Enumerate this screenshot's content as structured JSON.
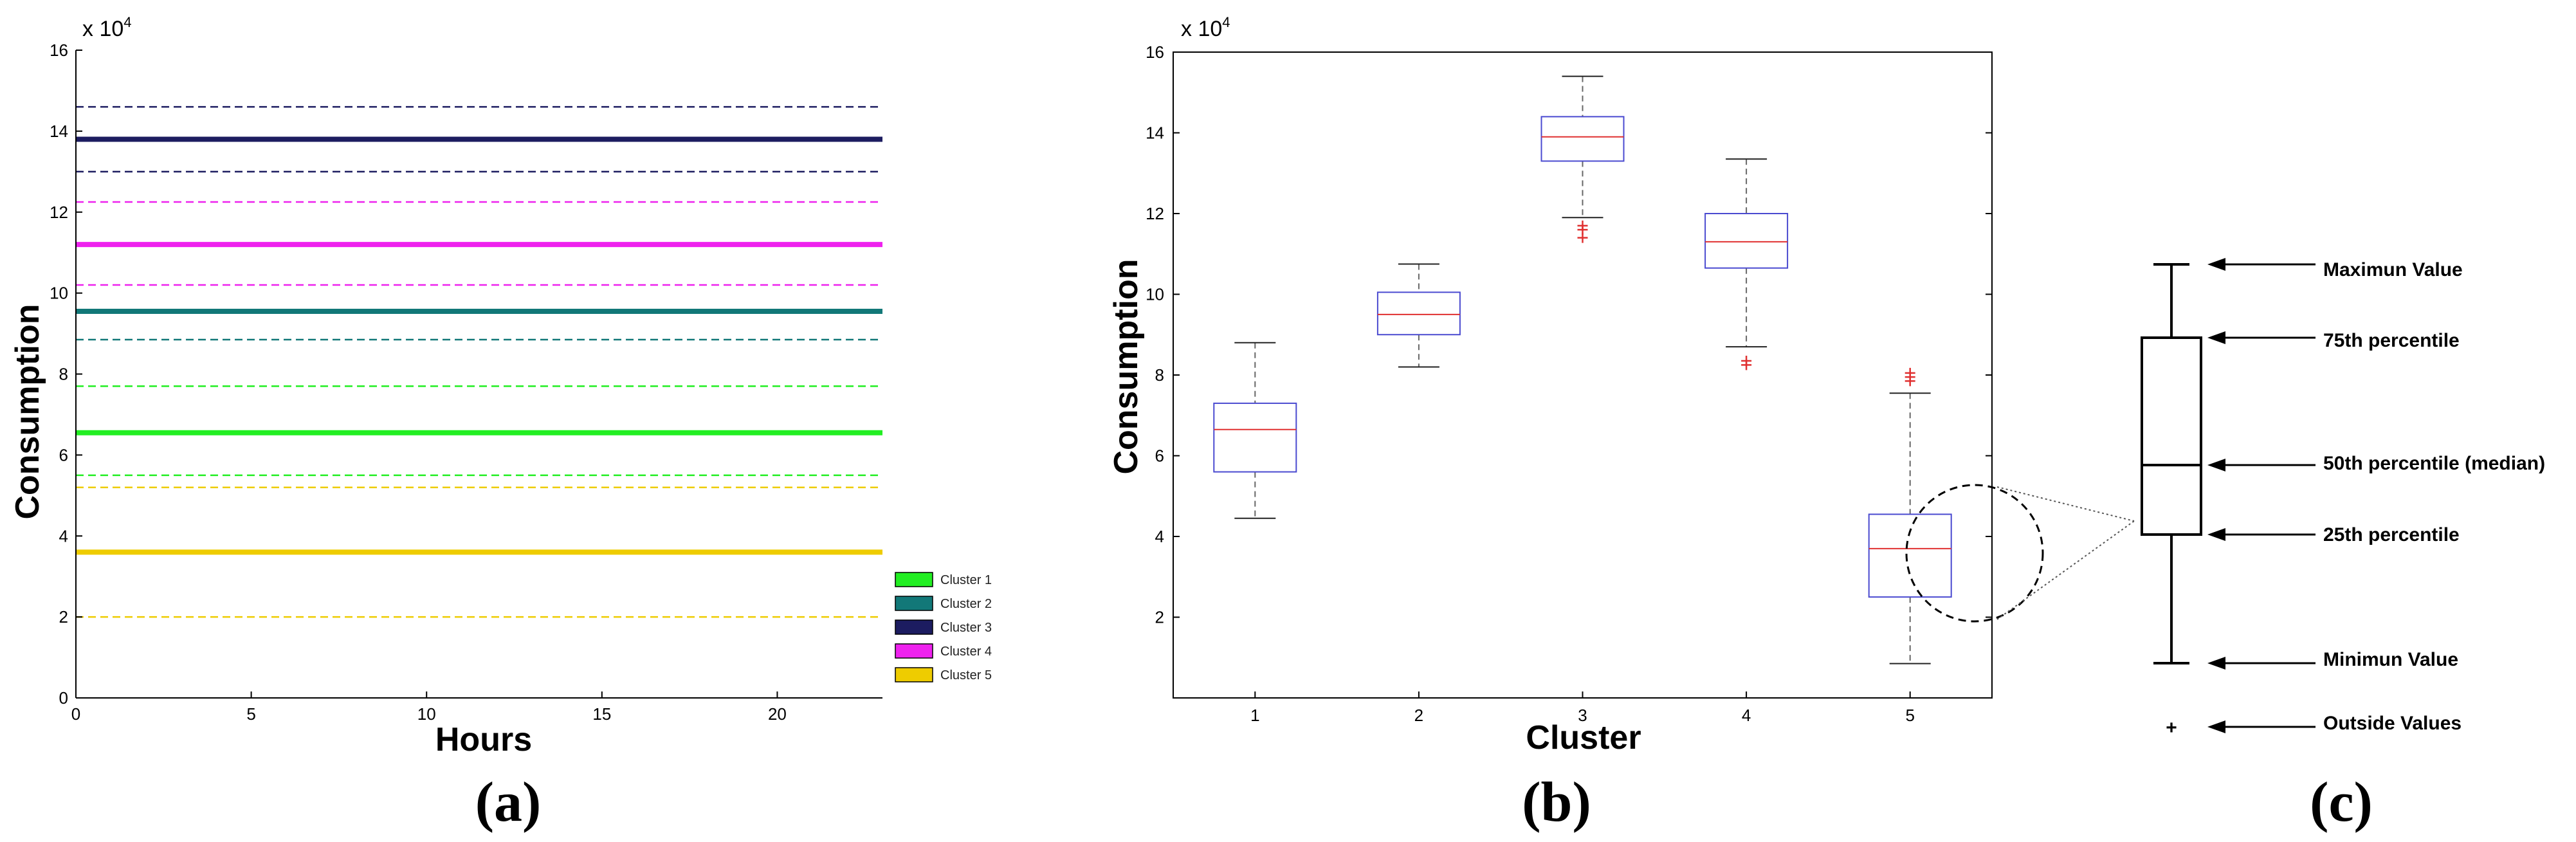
{
  "chart_data": [
    {
      "id": "a",
      "type": "line",
      "panel_label": "(a)",
      "xlabel": "Hours",
      "ylabel": "Consumption",
      "y_multiplier": "x 10",
      "y_multiplier_exp": "4",
      "xlim": [
        0,
        23
      ],
      "ylim": [
        0,
        16
      ],
      "xticks": [
        0,
        5,
        10,
        15,
        20
      ],
      "yticks": [
        0,
        2,
        4,
        6,
        8,
        10,
        12,
        14,
        16
      ],
      "series": [
        {
          "name": "Cluster 1",
          "color": "#22ee22",
          "mean": 6.55,
          "upper": 7.7,
          "lower": 5.5
        },
        {
          "name": "Cluster 2",
          "color": "#127878",
          "mean": 9.55,
          "upper": null,
          "lower": 8.85
        },
        {
          "name": "Cluster 3",
          "color": "#1c1c60",
          "mean": 13.8,
          "upper": 14.6,
          "lower": 13.0
        },
        {
          "name": "Cluster 4",
          "color": "#ee22ee",
          "mean": 11.2,
          "upper": 12.25,
          "lower": 10.2
        },
        {
          "name": "Cluster 5",
          "color": "#eecc00",
          "mean": 3.6,
          "upper": 5.2,
          "lower": 2.0
        }
      ]
    },
    {
      "id": "b",
      "type": "box",
      "panel_label": "(b)",
      "xlabel": "Cluster",
      "ylabel": "Consumption",
      "y_multiplier": "x 10",
      "y_multiplier_exp": "4",
      "ylim": [
        0,
        16
      ],
      "yticks": [
        2,
        4,
        6,
        8,
        10,
        12,
        14,
        16
      ],
      "categories": [
        "1",
        "2",
        "3",
        "4",
        "5"
      ],
      "boxes": [
        {
          "min": 4.45,
          "q1": 5.6,
          "median": 6.65,
          "q3": 7.3,
          "max": 8.8,
          "outliers": []
        },
        {
          "min": 8.2,
          "q1": 9.0,
          "median": 9.5,
          "q3": 10.05,
          "max": 10.75,
          "outliers": []
        },
        {
          "min": 11.9,
          "q1": 13.3,
          "median": 13.9,
          "q3": 14.4,
          "max": 15.4,
          "outliers": [
            11.4,
            11.6,
            11.7
          ]
        },
        {
          "min": 8.7,
          "q1": 10.65,
          "median": 11.3,
          "q3": 12.0,
          "max": 13.35,
          "outliers": [
            8.25,
            8.35
          ]
        },
        {
          "min": 0.85,
          "q1": 2.5,
          "median": 3.7,
          "q3": 4.55,
          "max": 7.55,
          "outliers": [
            7.85,
            7.95,
            8.05
          ]
        }
      ]
    },
    {
      "id": "c",
      "type": "diagram",
      "panel_label": "(c)",
      "labels": {
        "max": "Maximun Value",
        "q3": "75th percentile",
        "median": "50th percentile (median)",
        "q1": "25th percentile",
        "min": "Minimun Value",
        "outside": "Outside Values"
      },
      "outside_symbol": "+"
    }
  ]
}
